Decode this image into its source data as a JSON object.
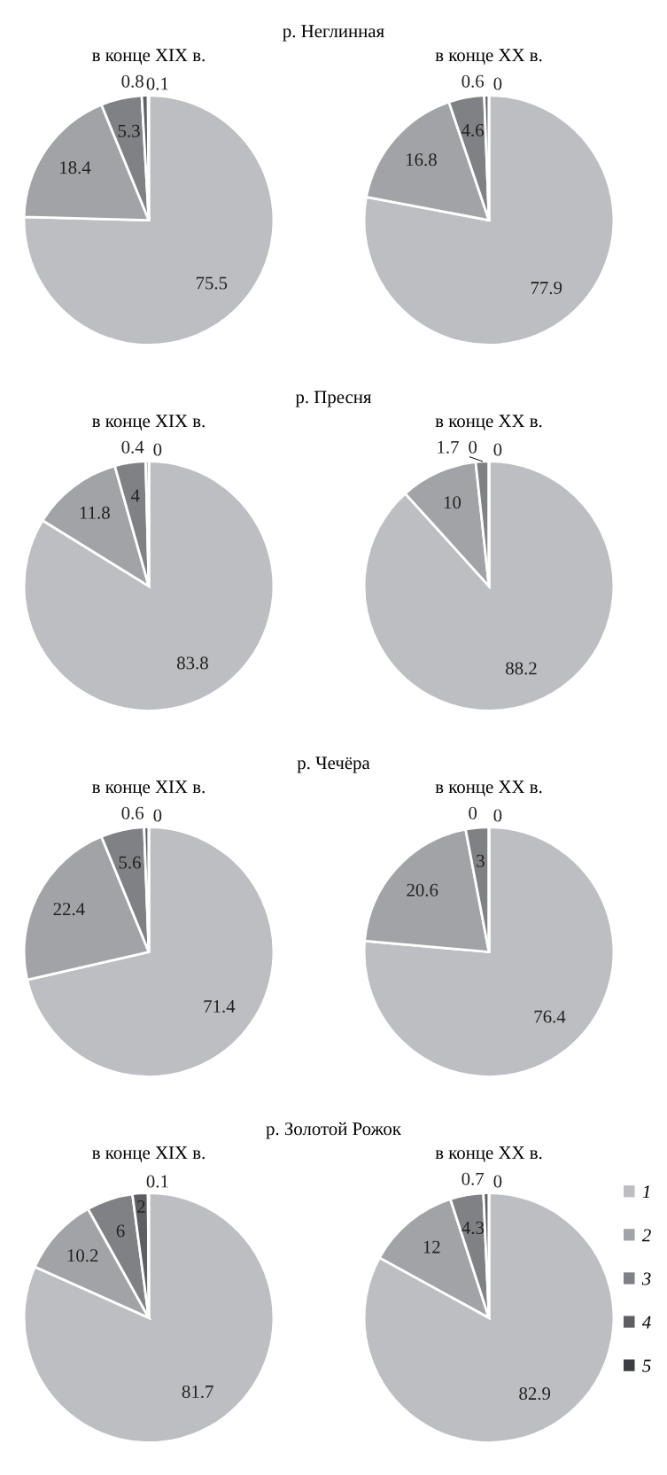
{
  "chart_data": [
    {
      "type": "pie",
      "title": "р. Неглинная",
      "subtitle": "в конце XIX в.",
      "categories": [
        null,
        null,
        null,
        null,
        null
      ],
      "values": [
        75.5,
        18.4,
        5.3,
        0.8,
        0.1
      ],
      "value_labels": [
        "75.5",
        "18.4",
        "5.3",
        "0.8",
        "0.1"
      ],
      "colors": [
        "#bdbec2",
        "#a2a3a7",
        "#808185",
        "#5e5f63",
        "#3d3e42"
      ]
    },
    {
      "type": "pie",
      "title": "в конце XX в.",
      "categories": [
        null,
        null,
        null,
        null,
        null
      ],
      "values": [
        77.9,
        16.8,
        4.6,
        0.6,
        0
      ],
      "value_labels": [
        "77.9",
        "16.8",
        "4.6",
        "0.6",
        "0"
      ],
      "colors": [
        "#bdbec2",
        "#a2a3a7",
        "#808185",
        "#5e5f63",
        "#3d3e42"
      ]
    },
    {
      "type": "pie",
      "title": "р. Пресня",
      "subtitle": "в конце XIX в.",
      "categories": [
        null,
        null,
        null,
        null,
        null
      ],
      "values": [
        83.8,
        11.8,
        4,
        0.4,
        0
      ],
      "value_labels": [
        "83.8",
        "11.8",
        "4",
        "0.4",
        "0"
      ],
      "colors": [
        "#bdbec2",
        "#a2a3a7",
        "#808185",
        "#5e5f63",
        "#3d3e42"
      ]
    },
    {
      "type": "pie",
      "title": "в конце XX в.",
      "categories": [
        null,
        null,
        null,
        null,
        null
      ],
      "values": [
        88.2,
        10,
        1.7,
        0,
        0
      ],
      "value_labels": [
        "88.2",
        "10",
        "1.7",
        "0",
        "0"
      ],
      "colors": [
        "#bdbec2",
        "#a2a3a7",
        "#808185",
        "#5e5f63",
        "#3d3e42"
      ]
    },
    {
      "type": "pie",
      "title": "р. Чечёра",
      "subtitle": "в конце XIX в.",
      "categories": [
        null,
        null,
        null,
        null,
        null
      ],
      "values": [
        71.4,
        22.4,
        5.6,
        0.6,
        0
      ],
      "value_labels": [
        "71.4",
        "22.4",
        "5.6",
        "0.6",
        "0"
      ],
      "colors": [
        "#bdbec2",
        "#a2a3a7",
        "#808185",
        "#5e5f63",
        "#3d3e42"
      ]
    },
    {
      "type": "pie",
      "title": "в конце XX в.",
      "categories": [
        null,
        null,
        null,
        null,
        null
      ],
      "values": [
        76.4,
        20.6,
        3,
        0,
        0
      ],
      "value_labels": [
        "76.4",
        "20.6",
        "3",
        "0",
        "0"
      ],
      "colors": [
        "#bdbec2",
        "#a2a3a7",
        "#808185",
        "#5e5f63",
        "#3d3e42"
      ]
    },
    {
      "type": "pie",
      "title": "р. Золотой Рожок",
      "subtitle": "в конце XIX в.",
      "categories": [
        null,
        null,
        null,
        null,
        null
      ],
      "values": [
        81.7,
        10.2,
        6,
        2,
        0.1
      ],
      "value_labels": [
        "81.7",
        "10.2",
        "6",
        "2",
        "0.1"
      ],
      "colors": [
        "#bdbec2",
        "#a2a3a7",
        "#808185",
        "#5e5f63",
        "#3d3e42"
      ]
    },
    {
      "type": "pie",
      "title": "в конце XX в.",
      "categories": [
        "1",
        "2",
        "3",
        "4",
        "5"
      ],
      "values": [
        82.9,
        12,
        4.3,
        0.7,
        0
      ],
      "value_labels": [
        "82.9",
        "12",
        "4.3",
        "0.7",
        "0"
      ],
      "colors": [
        "#bdbec2",
        "#a2a3a7",
        "#808185",
        "#5e5f63",
        "#3d3e42"
      ],
      "legend": "right"
    }
  ]
}
